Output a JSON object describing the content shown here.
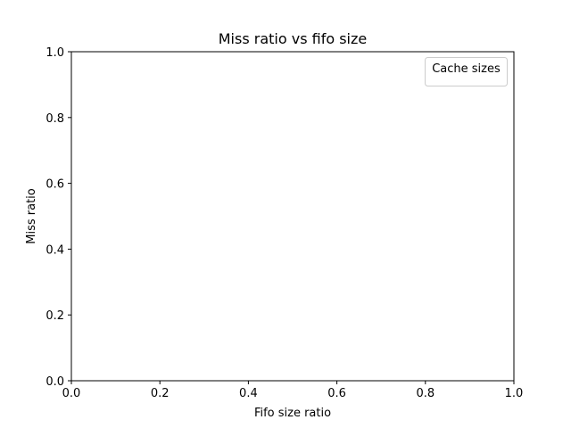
{
  "chart_data": {
    "type": "line",
    "title": "Miss ratio vs fifo size",
    "xlabel": "Fifo size ratio",
    "ylabel": "Miss ratio",
    "xlim": [
      0.0,
      1.0
    ],
    "ylim": [
      0.0,
      1.0
    ],
    "x_ticks": [
      "0.0",
      "0.2",
      "0.4",
      "0.6",
      "0.8",
      "1.0"
    ],
    "y_ticks": [
      "0.0",
      "0.2",
      "0.4",
      "0.6",
      "0.8",
      "1.0"
    ],
    "grid": false,
    "legend": {
      "title": "Cache sizes",
      "placement": "top-right",
      "entries": []
    },
    "series": []
  }
}
